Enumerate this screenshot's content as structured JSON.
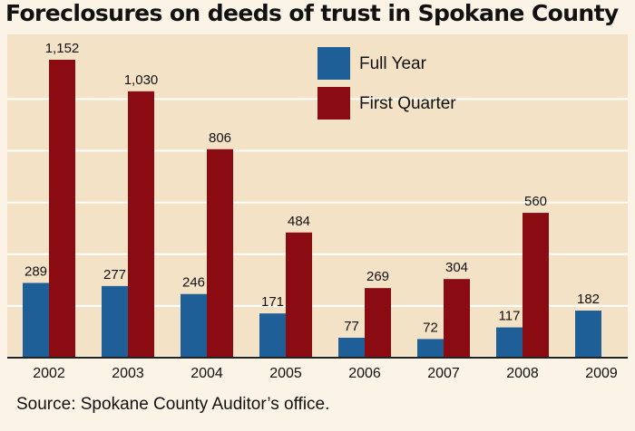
{
  "chart_data": {
    "type": "bar",
    "title": "Foreclosures on deeds of trust in Spokane County",
    "xlabel": "",
    "ylabel": "",
    "categories": [
      "2002",
      "2003",
      "2004",
      "2005",
      "2006",
      "2007",
      "2008",
      "2009"
    ],
    "series": [
      {
        "name": "Full Year",
        "values": [
          289,
          277,
          246,
          171,
          77,
          72,
          117,
          182
        ],
        "color": "#1d5f96"
      },
      {
        "name": "First Quarter",
        "values": [
          1152,
          1030,
          806,
          484,
          269,
          304,
          560,
          null
        ],
        "color": "#8b0b12"
      }
    ],
    "value_labels": {
      "Full Year": [
        "289",
        "277",
        "246",
        "171",
        "77",
        "72",
        "117",
        "182"
      ],
      "First Quarter": [
        "1,152",
        "1,030",
        "806",
        "484",
        "269",
        "304",
        "560",
        ""
      ]
    },
    "ylim": [
      0,
      1200
    ],
    "grid": true,
    "legend": "top-center",
    "source": "Source: Spokane County Auditor’s office."
  },
  "colors": {
    "background": "#fbf3e6",
    "plot_area": "#f3e2c6",
    "gridline": "#ffffff",
    "axis": "#222222"
  }
}
